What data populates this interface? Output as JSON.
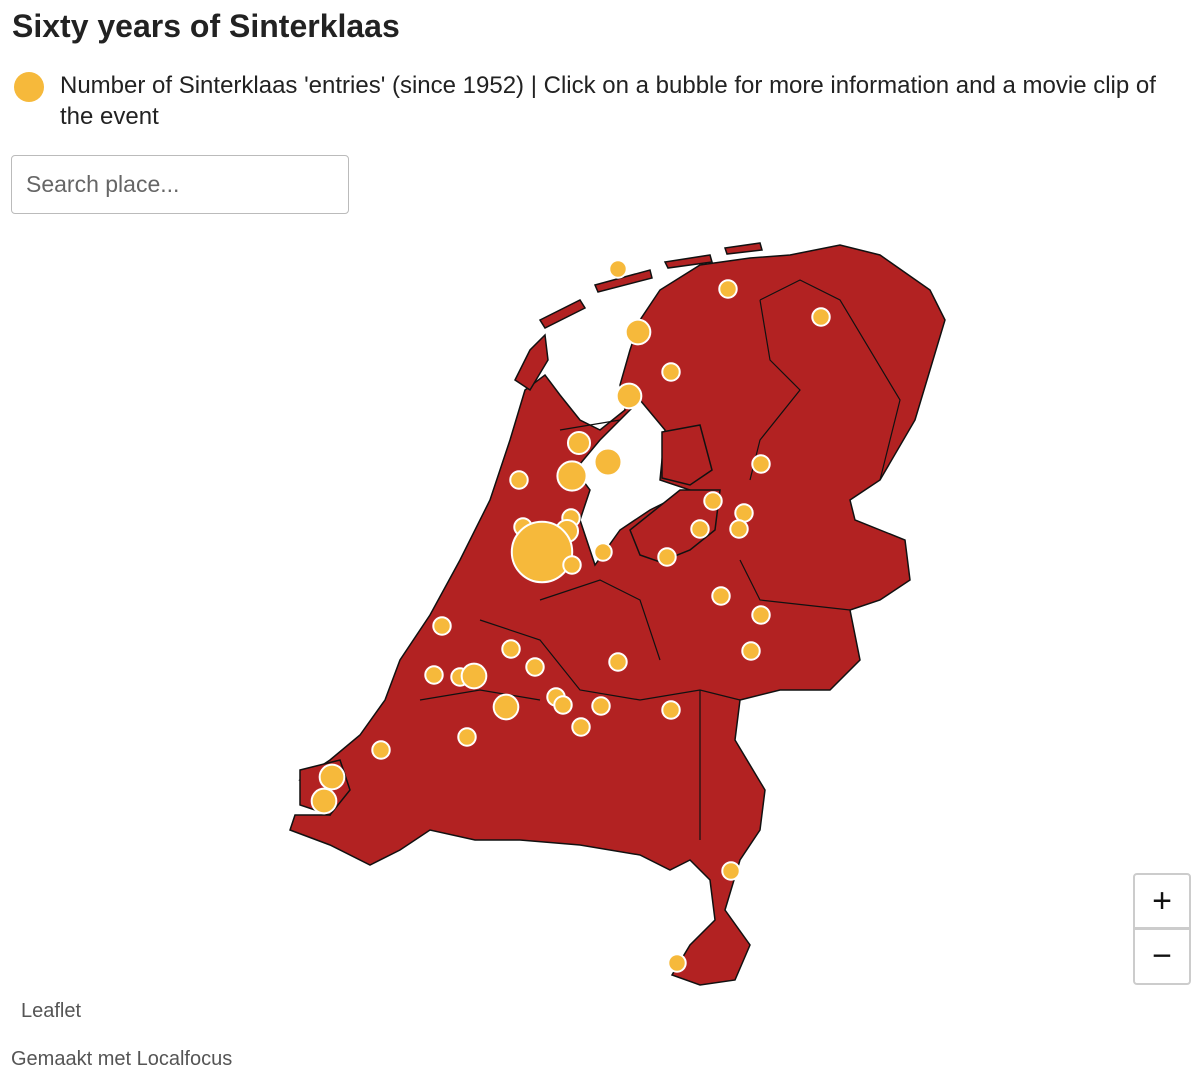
{
  "header": {
    "title": "Sixty years of Sinterklaas"
  },
  "legend": {
    "label": "Number of Sinterklaas 'entries' (since 1952) | Click on a bubble for more information and a movie clip of the event"
  },
  "search": {
    "placeholder": "Search place..."
  },
  "zoom": {
    "in": "+",
    "out": "−"
  },
  "attribution": "Leaflet",
  "footer": "Gemaakt met Localfocus",
  "bubbles": [
    {
      "entries": 5
    },
    {
      "entries": 5
    },
    {
      "entries": 5
    },
    {
      "entries": 10
    },
    {
      "entries": 5
    },
    {
      "entries": 10
    },
    {
      "entries": 8
    },
    {
      "entries": 12
    },
    {
      "entries": 14
    },
    {
      "entries": 5
    },
    {
      "entries": 5
    },
    {
      "entries": 5
    },
    {
      "entries": 5
    },
    {
      "entries": 5
    },
    {
      "entries": 5
    },
    {
      "entries": 5
    },
    {
      "entries": 5
    },
    {
      "entries": 8
    },
    {
      "entries": 60
    },
    {
      "entries": 5
    },
    {
      "entries": 5
    },
    {
      "entries": 5
    },
    {
      "entries": 5
    },
    {
      "entries": 5
    },
    {
      "entries": 5
    },
    {
      "entries": 5
    },
    {
      "entries": 5
    },
    {
      "entries": 5
    },
    {
      "entries": 5
    },
    {
      "entries": 5
    },
    {
      "entries": 5
    },
    {
      "entries": 10
    },
    {
      "entries": 5
    },
    {
      "entries": 5
    },
    {
      "entries": 5
    },
    {
      "entries": 5
    },
    {
      "entries": 10
    },
    {
      "entries": 5
    },
    {
      "entries": 5
    },
    {
      "entries": 5
    },
    {
      "entries": 10
    },
    {
      "entries": 10
    },
    {
      "entries": 5
    },
    {
      "entries": 5
    }
  ]
}
